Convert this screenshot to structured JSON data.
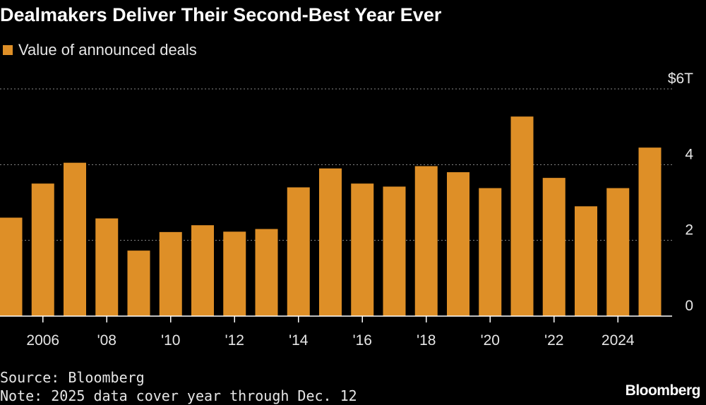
{
  "title": "Dealmakers Deliver Their Second-Best Year Ever",
  "legend": {
    "label": "Value of announced deals",
    "color": "#de8f27"
  },
  "chart_data": {
    "type": "bar",
    "categories": [
      "2005",
      "2006",
      "2007",
      "2008",
      "2009",
      "2010",
      "2011",
      "2012",
      "2013",
      "2014",
      "2015",
      "2016",
      "2017",
      "2018",
      "2019",
      "2020",
      "2021",
      "2022",
      "2023",
      "2024",
      "2025"
    ],
    "series": [
      {
        "name": "Value of announced deals",
        "values": [
          2.6,
          3.5,
          4.05,
          2.58,
          1.73,
          2.22,
          2.4,
          2.23,
          2.3,
          3.4,
          3.9,
          3.5,
          3.42,
          3.96,
          3.8,
          3.38,
          5.27,
          3.65,
          2.9,
          3.38,
          4.45
        ]
      }
    ],
    "x_tick_labels": [
      "2006",
      "'08",
      "'10",
      "'12",
      "'14",
      "'16",
      "'18",
      "'20",
      "'22",
      "2024"
    ],
    "x_tick_categories": [
      "2006",
      "2008",
      "2010",
      "2012",
      "2014",
      "2016",
      "2018",
      "2020",
      "2022",
      "2024"
    ],
    "y_tick_labels": [
      "0",
      "2",
      "4",
      "$6T"
    ],
    "y_tick_values": [
      0,
      2,
      4,
      6
    ],
    "ylim": [
      0,
      6
    ],
    "unit": "trillion USD",
    "grid": true,
    "legend_position": "top-left",
    "bar_color": "#de8f27"
  },
  "footer": {
    "source": "Source: Bloomberg",
    "note": "Note: 2025 data cover year through Dec. 12",
    "brand": "Bloomberg"
  }
}
